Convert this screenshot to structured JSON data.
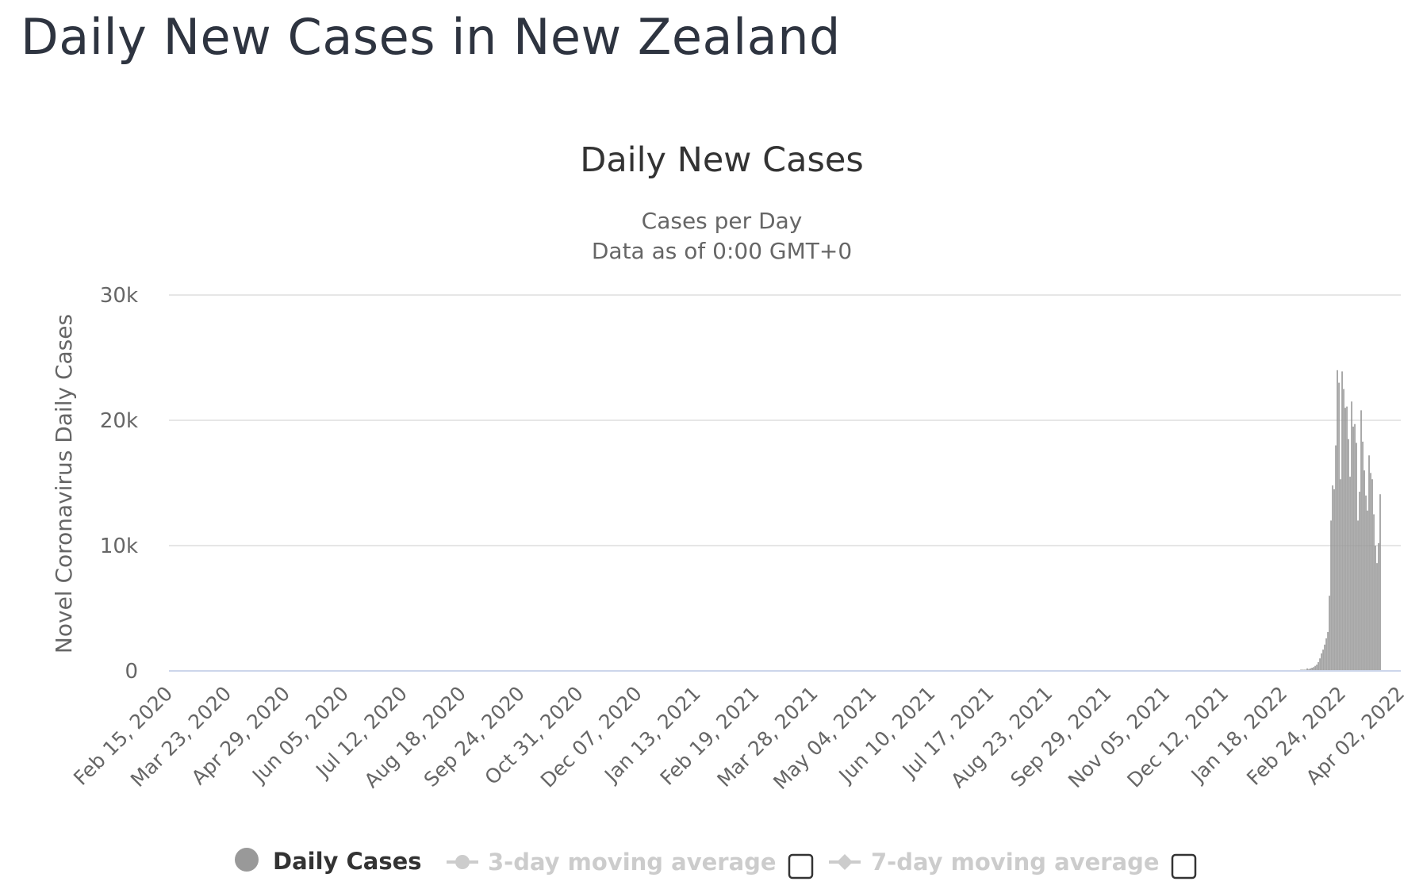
{
  "page_title": "Daily New Cases in New Zealand",
  "chart_data": {
    "type": "bar",
    "title": "Daily New Cases",
    "subtitle_lines": [
      "Cases per Day",
      "Data as of 0:00 GMT+0"
    ],
    "ylabel": "Novel Coronavirus Daily Cases",
    "xlabel": "",
    "ylim": [
      0,
      30000
    ],
    "y_ticks": [
      {
        "value": 0,
        "label": "0"
      },
      {
        "value": 10000,
        "label": "10k"
      },
      {
        "value": 20000,
        "label": "20k"
      },
      {
        "value": 30000,
        "label": "30k"
      }
    ],
    "x_range": [
      "2020-02-15",
      "2022-04-02"
    ],
    "x_tick_labels": [
      "Feb 15, 2020",
      "Mar 23, 2020",
      "Apr 29, 2020",
      "Jun 05, 2020",
      "Jul 12, 2020",
      "Aug 18, 2020",
      "Sep 24, 2020",
      "Oct 31, 2020",
      "Dec 07, 2020",
      "Jan 13, 2021",
      "Feb 19, 2021",
      "Mar 28, 2021",
      "May 04, 2021",
      "Jun 10, 2021",
      "Jul 17, 2021",
      "Aug 23, 2021",
      "Sep 29, 2021",
      "Nov 05, 2021",
      "Dec 12, 2021",
      "Jan 18, 2022",
      "Feb 24, 2022",
      "Apr 02, 2022"
    ],
    "grid": true,
    "bar_color": "#999999",
    "series": [
      {
        "name": "Daily Cases",
        "points": [
          {
            "date": "2022-01-29",
            "value": 100
          },
          {
            "date": "2022-01-30",
            "value": 100
          },
          {
            "date": "2022-01-31",
            "value": 100
          },
          {
            "date": "2022-02-01",
            "value": 100
          },
          {
            "date": "2022-02-02",
            "value": 200
          },
          {
            "date": "2022-02-03",
            "value": 150
          },
          {
            "date": "2022-02-04",
            "value": 200
          },
          {
            "date": "2022-02-05",
            "value": 250
          },
          {
            "date": "2022-02-06",
            "value": 300
          },
          {
            "date": "2022-02-07",
            "value": 400
          },
          {
            "date": "2022-02-08",
            "value": 500
          },
          {
            "date": "2022-02-09",
            "value": 700
          },
          {
            "date": "2022-02-10",
            "value": 1000
          },
          {
            "date": "2022-02-11",
            "value": 1400
          },
          {
            "date": "2022-02-12",
            "value": 1700
          },
          {
            "date": "2022-02-13",
            "value": 2100
          },
          {
            "date": "2022-02-14",
            "value": 2600
          },
          {
            "date": "2022-02-15",
            "value": 3100
          },
          {
            "date": "2022-02-16",
            "value": 6000
          },
          {
            "date": "2022-02-17",
            "value": 12000
          },
          {
            "date": "2022-02-18",
            "value": 14800
          },
          {
            "date": "2022-02-19",
            "value": 14500
          },
          {
            "date": "2022-02-20",
            "value": 18000
          },
          {
            "date": "2022-02-21",
            "value": 24000
          },
          {
            "date": "2022-02-22",
            "value": 23000
          },
          {
            "date": "2022-02-23",
            "value": 15300
          },
          {
            "date": "2022-02-24",
            "value": 23900
          },
          {
            "date": "2022-02-25",
            "value": 22500
          },
          {
            "date": "2022-02-26",
            "value": 21000
          },
          {
            "date": "2022-02-27",
            "value": 21100
          },
          {
            "date": "2022-02-28",
            "value": 18500
          },
          {
            "date": "2022-03-01",
            "value": 15500
          },
          {
            "date": "2022-03-02",
            "value": 21500
          },
          {
            "date": "2022-03-03",
            "value": 19500
          },
          {
            "date": "2022-03-04",
            "value": 19700
          },
          {
            "date": "2022-03-05",
            "value": 18200
          },
          {
            "date": "2022-03-06",
            "value": 12000
          },
          {
            "date": "2022-03-07",
            "value": 14300
          },
          {
            "date": "2022-03-08",
            "value": 20800
          },
          {
            "date": "2022-03-09",
            "value": 18300
          },
          {
            "date": "2022-03-10",
            "value": 16000
          },
          {
            "date": "2022-03-11",
            "value": 14000
          },
          {
            "date": "2022-03-12",
            "value": 12800
          },
          {
            "date": "2022-03-13",
            "value": 17200
          },
          {
            "date": "2022-03-14",
            "value": 15800
          },
          {
            "date": "2022-03-15",
            "value": 15300
          },
          {
            "date": "2022-03-16",
            "value": 12500
          },
          {
            "date": "2022-03-17",
            "value": 10000
          },
          {
            "date": "2022-03-18",
            "value": 8600
          },
          {
            "date": "2022-03-19",
            "value": 10200
          },
          {
            "date": "2022-03-20",
            "value": 14100
          }
        ]
      }
    ]
  },
  "legend": {
    "items": [
      {
        "label": "Daily Cases",
        "active": true
      },
      {
        "label": "3-day moving average",
        "active": false
      },
      {
        "label": "7-day moving average",
        "active": false
      }
    ]
  },
  "colors": {
    "grid": "#e6e6e6",
    "axis_line": "#ccd6eb",
    "legend_hidden": "#cccccc",
    "legend_active_marker": "#999999"
  }
}
